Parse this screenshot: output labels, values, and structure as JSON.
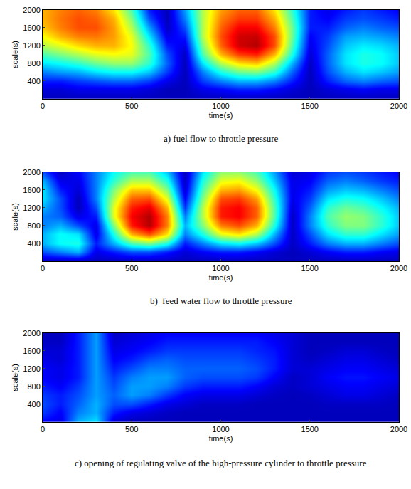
{
  "chart_data": [
    {
      "type": "heatmap",
      "title": "a) fuel flow to throttle pressure",
      "x_label": "time(s)",
      "y_label": "scale(s)",
      "color": "jet",
      "grid": false,
      "x": [
        0,
        100,
        200,
        300,
        400,
        500,
        600,
        700,
        800,
        900,
        1000,
        1100,
        1200,
        1300,
        1400,
        1500,
        1600,
        1700,
        1800,
        1900,
        2000
      ],
      "y": [
        0,
        200,
        400,
        600,
        800,
        1000,
        1200,
        1400,
        1600,
        1800,
        2000
      ],
      "z": [
        [
          0.05,
          0.05,
          0.05,
          0.05,
          0.05,
          0.05,
          0.05,
          0.05,
          0.05,
          0.05,
          0.05,
          0.05,
          0.05,
          0.05,
          0.05,
          0.05,
          0.05,
          0.05,
          0.05,
          0.05,
          0.05
        ],
        [
          0.08,
          0.08,
          0.1,
          0.1,
          0.1,
          0.1,
          0.08,
          0.05,
          0.05,
          0.1,
          0.12,
          0.15,
          0.15,
          0.12,
          0.08,
          0.05,
          0.08,
          0.1,
          0.12,
          0.1,
          0.1
        ],
        [
          0.15,
          0.15,
          0.18,
          0.2,
          0.22,
          0.22,
          0.18,
          0.1,
          0.05,
          0.18,
          0.25,
          0.3,
          0.3,
          0.25,
          0.15,
          0.05,
          0.15,
          0.22,
          0.25,
          0.22,
          0.2
        ],
        [
          0.25,
          0.28,
          0.3,
          0.35,
          0.38,
          0.38,
          0.32,
          0.18,
          0.05,
          0.25,
          0.4,
          0.48,
          0.5,
          0.42,
          0.22,
          0.05,
          0.2,
          0.3,
          0.35,
          0.32,
          0.28
        ],
        [
          0.35,
          0.38,
          0.42,
          0.48,
          0.52,
          0.52,
          0.42,
          0.22,
          0.05,
          0.35,
          0.55,
          0.65,
          0.68,
          0.55,
          0.3,
          0.06,
          0.22,
          0.35,
          0.4,
          0.38,
          0.32
        ],
        [
          0.45,
          0.5,
          0.55,
          0.6,
          0.62,
          0.6,
          0.45,
          0.2,
          0.06,
          0.45,
          0.7,
          0.82,
          0.85,
          0.7,
          0.4,
          0.08,
          0.22,
          0.35,
          0.4,
          0.38,
          0.32
        ],
        [
          0.55,
          0.6,
          0.66,
          0.7,
          0.7,
          0.62,
          0.42,
          0.15,
          0.1,
          0.5,
          0.78,
          0.92,
          0.95,
          0.8,
          0.45,
          0.1,
          0.2,
          0.32,
          0.36,
          0.34,
          0.3
        ],
        [
          0.62,
          0.7,
          0.75,
          0.76,
          0.72,
          0.6,
          0.35,
          0.1,
          0.15,
          0.55,
          0.8,
          0.92,
          0.93,
          0.8,
          0.48,
          0.12,
          0.18,
          0.28,
          0.3,
          0.28,
          0.25
        ],
        [
          0.68,
          0.75,
          0.8,
          0.8,
          0.72,
          0.55,
          0.28,
          0.06,
          0.2,
          0.55,
          0.78,
          0.88,
          0.88,
          0.75,
          0.48,
          0.15,
          0.15,
          0.22,
          0.25,
          0.22,
          0.2
        ],
        [
          0.7,
          0.76,
          0.8,
          0.78,
          0.7,
          0.5,
          0.2,
          0.05,
          0.25,
          0.55,
          0.75,
          0.82,
          0.82,
          0.7,
          0.45,
          0.15,
          0.12,
          0.18,
          0.2,
          0.18,
          0.15
        ],
        [
          0.7,
          0.75,
          0.78,
          0.75,
          0.65,
          0.45,
          0.15,
          0.05,
          0.28,
          0.55,
          0.72,
          0.78,
          0.78,
          0.65,
          0.42,
          0.15,
          0.1,
          0.15,
          0.18,
          0.15,
          0.12
        ]
      ],
      "zlim": [
        0,
        1
      ],
      "xlim": [
        0,
        2000
      ],
      "ylim": [
        0,
        2000
      ],
      "xticks": [
        0,
        500,
        1000,
        1500,
        2000
      ],
      "yticks": [
        400,
        800,
        1200,
        1600,
        2000
      ]
    },
    {
      "type": "heatmap",
      "title": "b)  feed water flow to throttle pressure",
      "x_label": "time(s)",
      "y_label": "scale(s)",
      "color": "jet",
      "grid": false,
      "x": [
        0,
        100,
        200,
        300,
        400,
        500,
        600,
        700,
        800,
        900,
        1000,
        1100,
        1200,
        1300,
        1400,
        1500,
        1600,
        1700,
        1800,
        1900,
        2000
      ],
      "y": [
        0,
        200,
        400,
        600,
        800,
        1000,
        1200,
        1400,
        1600,
        1800,
        2000
      ],
      "z": [
        [
          0.05,
          0.05,
          0.05,
          0.05,
          0.05,
          0.05,
          0.05,
          0.05,
          0.05,
          0.05,
          0.05,
          0.05,
          0.05,
          0.05,
          0.05,
          0.05,
          0.05,
          0.05,
          0.05,
          0.05,
          0.05
        ],
        [
          0.2,
          0.25,
          0.3,
          0.1,
          0.15,
          0.2,
          0.2,
          0.15,
          0.08,
          0.12,
          0.15,
          0.15,
          0.12,
          0.08,
          0.05,
          0.08,
          0.12,
          0.15,
          0.15,
          0.12,
          0.1
        ],
        [
          0.3,
          0.38,
          0.4,
          0.15,
          0.3,
          0.45,
          0.5,
          0.4,
          0.15,
          0.25,
          0.35,
          0.38,
          0.32,
          0.2,
          0.06,
          0.15,
          0.25,
          0.3,
          0.3,
          0.25,
          0.2
        ],
        [
          0.3,
          0.38,
          0.35,
          0.1,
          0.4,
          0.7,
          0.8,
          0.65,
          0.25,
          0.4,
          0.6,
          0.65,
          0.55,
          0.3,
          0.06,
          0.2,
          0.35,
          0.42,
          0.42,
          0.35,
          0.28
        ],
        [
          0.25,
          0.3,
          0.2,
          0.1,
          0.5,
          0.85,
          0.95,
          0.75,
          0.3,
          0.5,
          0.75,
          0.8,
          0.7,
          0.4,
          0.06,
          0.25,
          0.42,
          0.5,
          0.5,
          0.42,
          0.32
        ],
        [
          0.25,
          0.22,
          0.1,
          0.15,
          0.6,
          0.88,
          0.95,
          0.75,
          0.25,
          0.55,
          0.85,
          0.88,
          0.78,
          0.45,
          0.06,
          0.25,
          0.45,
          0.52,
          0.5,
          0.42,
          0.32
        ],
        [
          0.3,
          0.2,
          0.05,
          0.2,
          0.6,
          0.85,
          0.9,
          0.7,
          0.18,
          0.55,
          0.85,
          0.88,
          0.78,
          0.45,
          0.08,
          0.22,
          0.42,
          0.48,
          0.45,
          0.38,
          0.3
        ],
        [
          0.35,
          0.2,
          0.05,
          0.25,
          0.55,
          0.78,
          0.8,
          0.6,
          0.12,
          0.5,
          0.8,
          0.82,
          0.72,
          0.42,
          0.1,
          0.18,
          0.35,
          0.4,
          0.38,
          0.32,
          0.25
        ],
        [
          0.35,
          0.15,
          0.08,
          0.25,
          0.5,
          0.68,
          0.68,
          0.5,
          0.08,
          0.45,
          0.7,
          0.72,
          0.62,
          0.38,
          0.1,
          0.15,
          0.28,
          0.32,
          0.3,
          0.25,
          0.2
        ],
        [
          0.3,
          0.1,
          0.1,
          0.25,
          0.42,
          0.55,
          0.55,
          0.4,
          0.06,
          0.4,
          0.6,
          0.62,
          0.52,
          0.32,
          0.1,
          0.12,
          0.22,
          0.25,
          0.22,
          0.18,
          0.15
        ],
        [
          0.2,
          0.06,
          0.12,
          0.25,
          0.38,
          0.45,
          0.45,
          0.32,
          0.05,
          0.35,
          0.52,
          0.52,
          0.45,
          0.28,
          0.08,
          0.1,
          0.18,
          0.2,
          0.18,
          0.15,
          0.12
        ]
      ],
      "zlim": [
        0,
        1
      ],
      "xlim": [
        0,
        2000
      ],
      "ylim": [
        0,
        2000
      ],
      "xticks": [
        0,
        500,
        1000,
        1500,
        2000
      ],
      "yticks": [
        400,
        800,
        1200,
        1600,
        2000
      ]
    },
    {
      "type": "heatmap",
      "title": "c) opening of regulating valve of the high-pressure cylinder to throttle pressure",
      "x_label": "time(s)",
      "y_label": "scale(s)",
      "color": "jet",
      "grid": false,
      "x": [
        0,
        100,
        200,
        300,
        400,
        500,
        600,
        700,
        800,
        900,
        1000,
        1100,
        1200,
        1300,
        1400,
        1500,
        1600,
        1700,
        1800,
        1900,
        2000
      ],
      "y": [
        0,
        200,
        400,
        600,
        800,
        1000,
        1200,
        1400,
        1600,
        1800,
        2000
      ],
      "z": [
        [
          0.12,
          0.1,
          0.3,
          0.35,
          0.08,
          0.05,
          0.05,
          0.05,
          0.05,
          0.05,
          0.05,
          0.05,
          0.05,
          0.05,
          0.05,
          0.05,
          0.05,
          0.05,
          0.05,
          0.05,
          0.05
        ],
        [
          0.18,
          0.12,
          0.25,
          0.3,
          0.15,
          0.1,
          0.08,
          0.06,
          0.05,
          0.05,
          0.05,
          0.05,
          0.05,
          0.05,
          0.05,
          0.05,
          0.05,
          0.05,
          0.05,
          0.05,
          0.05
        ],
        [
          0.2,
          0.15,
          0.22,
          0.3,
          0.2,
          0.2,
          0.15,
          0.1,
          0.08,
          0.06,
          0.06,
          0.06,
          0.05,
          0.05,
          0.05,
          0.05,
          0.06,
          0.06,
          0.06,
          0.06,
          0.05
        ],
        [
          0.18,
          0.15,
          0.2,
          0.28,
          0.22,
          0.28,
          0.25,
          0.18,
          0.12,
          0.1,
          0.1,
          0.1,
          0.08,
          0.06,
          0.05,
          0.06,
          0.08,
          0.1,
          0.1,
          0.08,
          0.06
        ],
        [
          0.15,
          0.12,
          0.18,
          0.28,
          0.2,
          0.28,
          0.28,
          0.25,
          0.18,
          0.15,
          0.15,
          0.15,
          0.12,
          0.08,
          0.06,
          0.08,
          0.1,
          0.12,
          0.12,
          0.1,
          0.08
        ],
        [
          0.12,
          0.1,
          0.15,
          0.28,
          0.18,
          0.25,
          0.28,
          0.28,
          0.22,
          0.2,
          0.2,
          0.2,
          0.18,
          0.12,
          0.06,
          0.08,
          0.12,
          0.14,
          0.14,
          0.12,
          0.1
        ],
        [
          0.12,
          0.1,
          0.15,
          0.28,
          0.15,
          0.2,
          0.25,
          0.25,
          0.22,
          0.22,
          0.22,
          0.22,
          0.2,
          0.15,
          0.08,
          0.08,
          0.1,
          0.12,
          0.12,
          0.1,
          0.08
        ],
        [
          0.1,
          0.08,
          0.15,
          0.28,
          0.12,
          0.15,
          0.2,
          0.22,
          0.2,
          0.2,
          0.2,
          0.2,
          0.18,
          0.15,
          0.08,
          0.06,
          0.08,
          0.1,
          0.1,
          0.08,
          0.06
        ],
        [
          0.08,
          0.08,
          0.15,
          0.28,
          0.1,
          0.12,
          0.15,
          0.18,
          0.18,
          0.18,
          0.18,
          0.18,
          0.16,
          0.14,
          0.08,
          0.05,
          0.06,
          0.08,
          0.08,
          0.06,
          0.05
        ],
        [
          0.06,
          0.06,
          0.15,
          0.28,
          0.08,
          0.1,
          0.12,
          0.15,
          0.15,
          0.15,
          0.15,
          0.15,
          0.15,
          0.12,
          0.08,
          0.05,
          0.05,
          0.05,
          0.05,
          0.05,
          0.05
        ],
        [
          0.05,
          0.05,
          0.15,
          0.28,
          0.06,
          0.08,
          0.1,
          0.12,
          0.12,
          0.12,
          0.12,
          0.12,
          0.12,
          0.1,
          0.08,
          0.05,
          0.05,
          0.05,
          0.05,
          0.05,
          0.05
        ]
      ],
      "zlim": [
        0,
        1
      ],
      "xlim": [
        0,
        2000
      ],
      "ylim": [
        0,
        2000
      ],
      "xticks": [
        0,
        500,
        1000,
        1500,
        2000
      ],
      "yticks": [
        400,
        800,
        1200,
        1600,
        2000
      ]
    }
  ]
}
